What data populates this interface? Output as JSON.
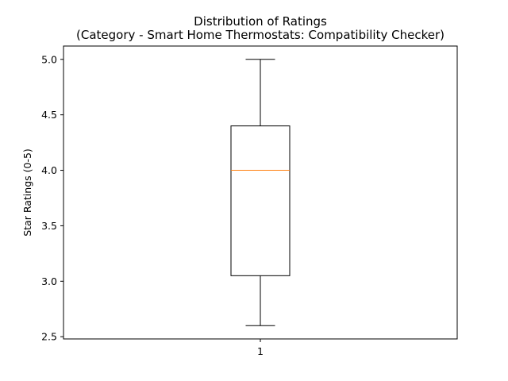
{
  "chart_data": {
    "type": "box",
    "title": "Distribution of Ratings\n(Category - Smart Home Thermostats: Compatibility Checker)",
    "title_lines": [
      "Distribution of Ratings",
      "(Category - Smart Home Thermostats: Compatibility Checker)"
    ],
    "xlabel": "",
    "ylabel": "Star Ratings (0-5)",
    "categories": [
      "1"
    ],
    "ylim": [
      2.48,
      5.12
    ],
    "yticks": [
      2.5,
      3.0,
      3.5,
      4.0,
      4.5,
      5.0
    ],
    "ytick_labels": [
      "2.5",
      "3.0",
      "3.5",
      "4.0",
      "4.5",
      "5.0"
    ],
    "boxes": [
      {
        "label": "1",
        "whisker_low": 2.6,
        "q1": 3.05,
        "median": 4.0,
        "q3": 4.4,
        "whisker_high": 5.0
      }
    ],
    "grid": false,
    "legend": "none",
    "colors": {
      "box": "#000000",
      "median": "#ff7f0e",
      "whisker": "#000000"
    }
  }
}
